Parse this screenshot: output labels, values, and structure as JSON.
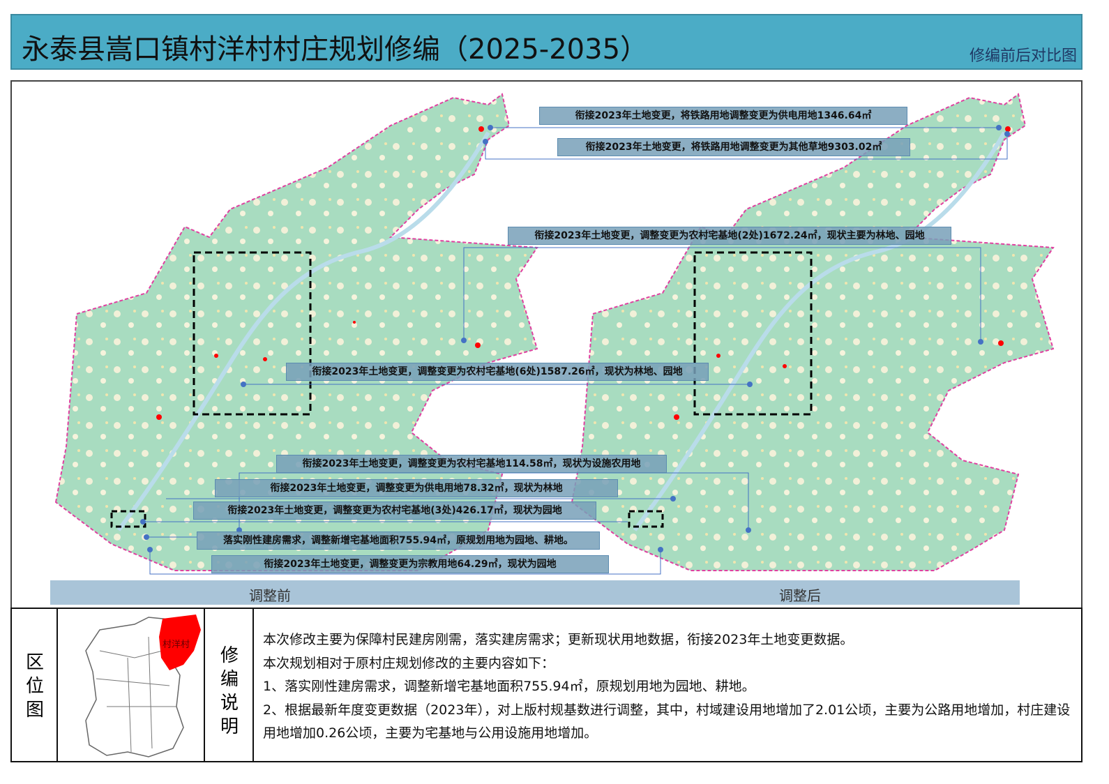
{
  "header": {
    "title": "永泰县嵩口镇村洋村村庄规划修编（2025-2035）",
    "subtitle": "修编前后对比图"
  },
  "callouts": [
    "衔接2023年土地变更，将铁路用地调整变更为供电用地1346.64㎡",
    "衔接2023年土地变更，将铁路用地调整变更为其他草地9303.02㎡",
    "衔接2023年土地变更，调整变更为农村宅基地(2处)1672.24㎡，现状主要为林地、园地",
    "衔接2023年土地变更，调整变更为农村宅基地(6处)1587.26㎡，现状为林地、园地",
    "衔接2023年土地变更，调整变更为农村宅基地114.58㎡，现状为设施农用地",
    "衔接2023年土地变更，调整变更为供电用地78.32㎡，现状为林地",
    "衔接2023年土地变更，调整变更为农村宅基地(3处)426.17㎡，现状为园地",
    "落实刚性建房需求，调整新增宅基地面积755.94㎡，原规划用地为园地、耕地。",
    "衔接2023年土地变更，调整变更为宗教用地64.29㎡，现状为园地"
  ],
  "captions": {
    "before": "调整前",
    "after": "调整后"
  },
  "locator": {
    "label": "区位图",
    "village": "村洋村"
  },
  "notes": {
    "label": "修编说明",
    "lines": [
      "本次修改主要为保障村民建房刚需，落实建房需求；更新现状用地数据，衔接2023年土地变更数据。",
      "本次规划相对于原村庄规划修改的主要内容如下：",
      "1、落实刚性建房需求，调整新增宅基地面积755.94㎡，原规划用地为园地、耕地。",
      "2、根据最新年度变更数据（2023年），对上版村规基数进行调整，其中，村域建设用地增加了2.01公顷，主要为公路用地增加，村庄建设用地增加0.26公顷，主要为宅基地与公用设施用地增加。"
    ]
  },
  "colors": {
    "title_bar": "#4bacc6",
    "forest": "#a8dcc0",
    "boundary": "#e040a0",
    "callout": "#7aa0b9",
    "highlight": "#ff0000"
  }
}
